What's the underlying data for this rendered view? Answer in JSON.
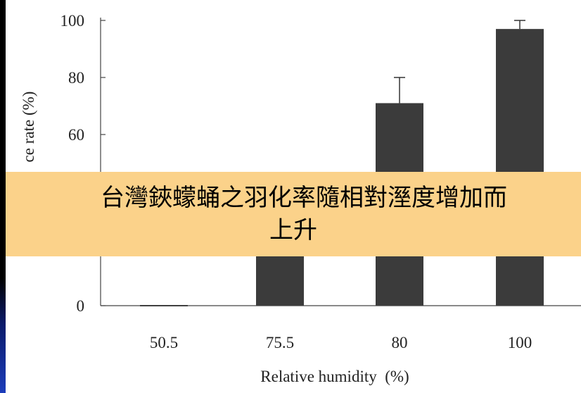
{
  "caption": {
    "line1": "台灣鋏蠓蛹之羽化率隨相對溼度增加而",
    "line2": "上升"
  },
  "chart_data": {
    "type": "bar",
    "categories": [
      "50.5",
      "75.5",
      "80",
      "100"
    ],
    "values": [
      0,
      28,
      71,
      97
    ],
    "error_plus": [
      0,
      2,
      9,
      3
    ],
    "ylim": [
      0,
      100
    ],
    "yticks": [
      "0",
      "20",
      "40",
      "60",
      "80",
      "100"
    ],
    "xlabel": "Relative humidity  (%)",
    "ylabel": "ce rate (%)",
    "bar_color": "#3b3b3b",
    "grid": false
  },
  "colors": {
    "banner": "#fbd28a",
    "background": "#000000",
    "panel": "#ffffff"
  }
}
